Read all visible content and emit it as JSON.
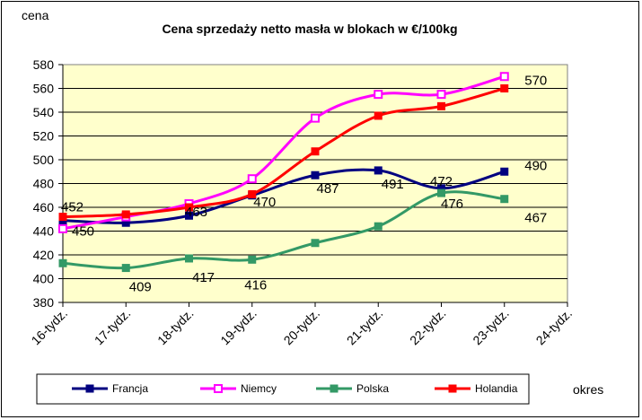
{
  "chart_data": {
    "type": "line",
    "title": "Cena sprzedaży netto masła  w blokach  w €/100kg",
    "ylabel": "cena",
    "xlabel": "okres",
    "ylim": [
      380,
      580
    ],
    "ytick_step": 20,
    "categories": [
      "16-tydz.",
      "17-tydz.",
      "18-tydz.",
      "19-tydz.",
      "20-tydz.",
      "21-tydz.",
      "22-tydz.",
      "23-tydz.",
      "24-tydz."
    ],
    "grid": true,
    "plot_background": "#ffffcc",
    "legend_position": "bottom",
    "series": [
      {
        "name": "Francja",
        "color": "#000080",
        "marker": "square-filled",
        "values": [
          449,
          447,
          453,
          470,
          487,
          491,
          476,
          490,
          null
        ]
      },
      {
        "name": "Niemcy",
        "color": "#ff00ff",
        "marker": "square-open",
        "values": [
          442,
          452,
          463,
          484,
          535,
          555,
          555,
          570,
          null
        ]
      },
      {
        "name": "Polska",
        "color": "#339966",
        "marker": "square-filled",
        "values": [
          413,
          409,
          417,
          416,
          430,
          444,
          472,
          467,
          null
        ]
      },
      {
        "name": "Holandia",
        "color": "#ff0000",
        "marker": "square-filled",
        "values": [
          452,
          454,
          460,
          471,
          507,
          537,
          545,
          560,
          null
        ]
      }
    ],
    "annotations": [
      "452",
      "450",
      "463",
      "470",
      "487",
      "491",
      "472",
      "476",
      "490",
      "570",
      "467",
      "409",
      "417",
      "416"
    ]
  }
}
